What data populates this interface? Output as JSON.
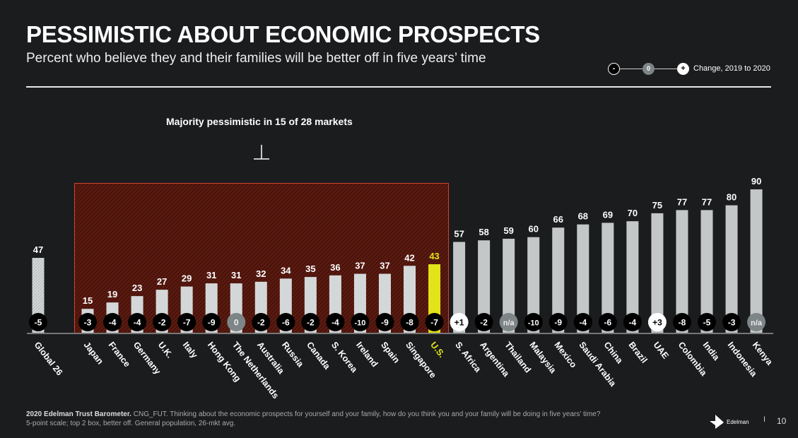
{
  "header": {
    "title": "PESSIMISTIC ABOUT ECONOMIC PROSPECTS",
    "subtitle": "Percent who believe they and their families will be better off in five years’ time"
  },
  "legend": {
    "minus": "-",
    "zero": "0",
    "plus": "+",
    "label": "Change, 2019 to 2020"
  },
  "annotation": "Majority pessimistic in 15 of 28 markets",
  "footer": {
    "bold": "2020 Edelman Trust Barometer.",
    "line1": " CNG_FUT. Thinking about the economic prospects for yourself and your family, how do you think you and your family will be doing in five years’ time?",
    "line2": "5-point scale; top 2 box, better off. General population, 26-mkt avg."
  },
  "brand": "Edelman",
  "page_number": "10",
  "colors": {
    "bar": "#d4d7d8",
    "highlight": "#e3e31a",
    "pessimistic_box": "#c0392b",
    "badge_negative": "#000000",
    "badge_zero": "#7d8586",
    "badge_positive": "#ffffff",
    "right_bar": "#b7bcbd"
  },
  "chart_data": {
    "type": "bar",
    "ylim": [
      0,
      100
    ],
    "categories": [
      "Global 26",
      "Japan",
      "France",
      "Germany",
      "U.K.",
      "Italy",
      "Hong Kong",
      "The Netherlands",
      "Australia",
      "Russia",
      "Canada",
      "S. Korea",
      "Ireland",
      "Spain",
      "Singapore",
      "U.S.",
      "S. Africa",
      "Argentina",
      "Thailand",
      "Malaysia",
      "Mexico",
      "Saudi Arabia",
      "China",
      "Brazil",
      "UAE",
      "Colombia",
      "India",
      "Indonesia",
      "Kenya"
    ],
    "values": [
      47,
      15,
      19,
      23,
      27,
      29,
      31,
      31,
      32,
      34,
      35,
      36,
      37,
      37,
      42,
      43,
      57,
      58,
      59,
      60,
      66,
      68,
      69,
      70,
      75,
      77,
      77,
      80,
      90
    ],
    "changes": [
      "-5",
      "-3",
      "-4",
      "-4",
      "-2",
      "-7",
      "-9",
      "0",
      "-2",
      "-6",
      "-2",
      "-4",
      "-10",
      "-9",
      "-8",
      "-7",
      "+1",
      "-2",
      "n/a",
      "-10",
      "-9",
      "-4",
      "-6",
      "-4",
      "+3",
      "-8",
      "-5",
      "-3",
      "n/a"
    ],
    "pessimistic_count": 15,
    "total_markets": 28,
    "highlight": "U.S."
  }
}
